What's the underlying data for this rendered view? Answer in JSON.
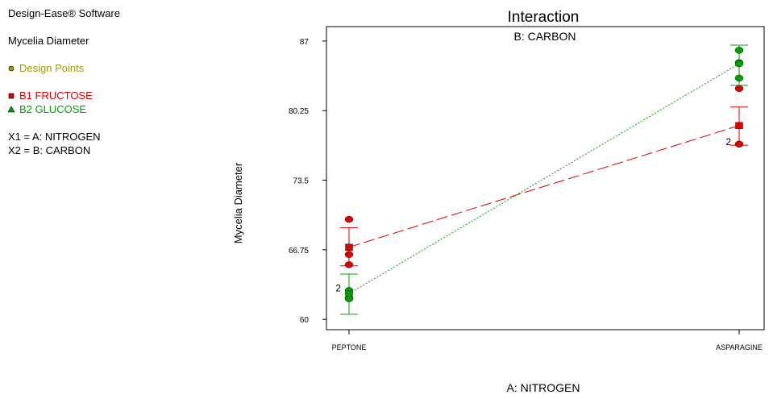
{
  "sidebar": {
    "software": "Design-Ease® Software",
    "response": "Mycelia Diameter",
    "design_points_label": "Design Points",
    "b1_label": "B1 FRUCTOSE",
    "b2_label": "B2 GLUCOSE",
    "x1_label": "X1 = A: NITROGEN",
    "x2_label": "X2 = B: CARBON"
  },
  "colors": {
    "design_points": "#a39a00",
    "b1": "#e00000",
    "b2": "#00a000"
  },
  "chart_data": {
    "type": "line",
    "title": "Interaction",
    "subtitle": "B: CARBON",
    "xlabel": "A: NITROGEN",
    "ylabel": "Mycelia Diameter",
    "categories": [
      "PEPTONE",
      "ASPARAGINE"
    ],
    "yticks": [
      "60",
      "66.75",
      "73.5",
      "80.25",
      "87"
    ],
    "ylim": [
      59,
      88.4
    ],
    "series": [
      {
        "name": "B1 FRUCTOSE",
        "marker": "square",
        "line_style": "dashed",
        "means": [
          67.0,
          78.8
        ],
        "ci_low": [
          65.2,
          76.9
        ],
        "ci_high": [
          68.9,
          80.6
        ],
        "points": [
          [
            0,
            69.7
          ],
          [
            0,
            66.3
          ],
          [
            0,
            65.3
          ],
          [
            1,
            82.4
          ],
          [
            1,
            77.0
          ]
        ]
      },
      {
        "name": "B2 GLUCOSE",
        "marker": "circle",
        "line_style": "dotted",
        "means": [
          62.5,
          84.8
        ],
        "ci_low": [
          60.5,
          82.7
        ],
        "ci_high": [
          64.4,
          86.6
        ],
        "points": [
          [
            0,
            62.8
          ],
          [
            0,
            62.1
          ],
          [
            0,
            62.0
          ],
          [
            1,
            86.1
          ],
          [
            1,
            84.9
          ],
          [
            1,
            83.4
          ]
        ]
      }
    ],
    "point_labels": [
      {
        "text": "2",
        "category": 0,
        "y": 62.8
      },
      {
        "text": "2",
        "category": 1,
        "y": 77.0
      }
    ]
  }
}
